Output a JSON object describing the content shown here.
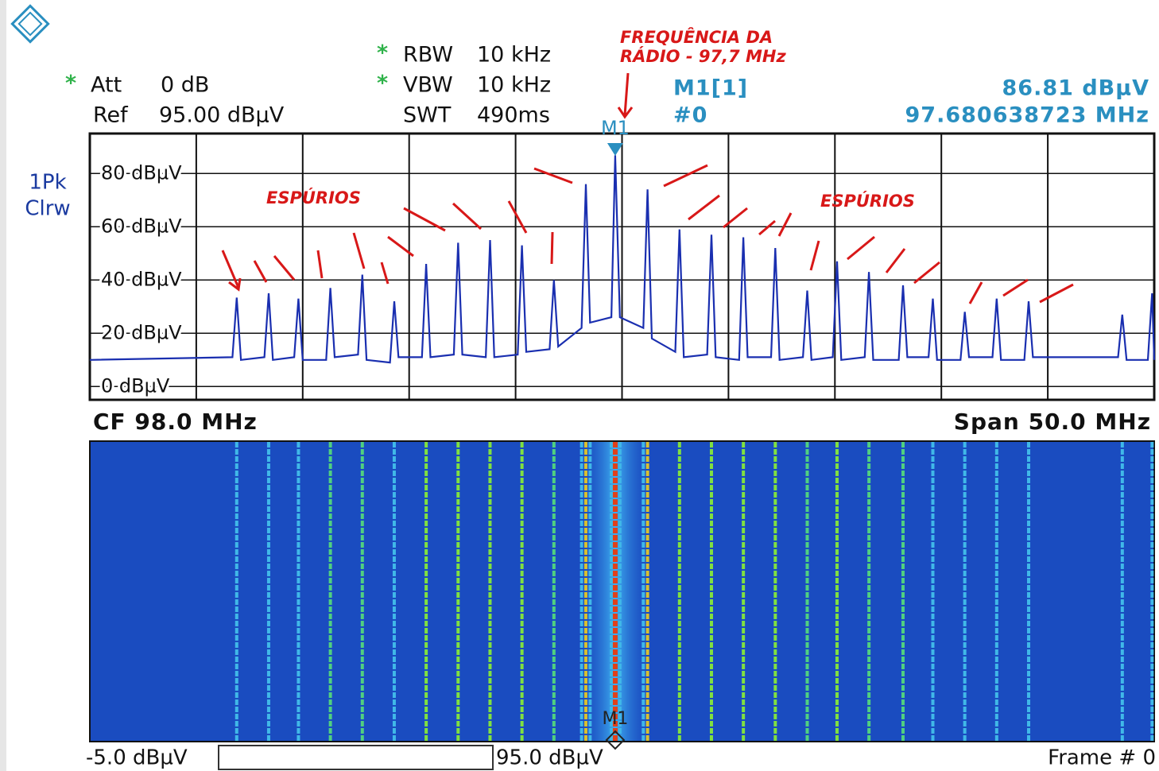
{
  "header": {
    "att_flag": "*",
    "att_label": "Att",
    "att_value": "0 dB",
    "ref_label": "Ref",
    "ref_value": "95.00 dBµV",
    "rbw_flag": "*",
    "rbw_label": "RBW",
    "rbw_value": "10 kHz",
    "vbw_flag": "*",
    "vbw_label": "VBW",
    "vbw_value": "10 kHz",
    "swt_label": "SWT",
    "swt_value": "490ms",
    "marker_name": "M1[1]",
    "marker_index": "#0",
    "marker_level": "86.81 dBµV",
    "marker_freq": "97.680638723 MHz",
    "trace_mode_1": "1Pk",
    "trace_mode_2": "Clrw"
  },
  "annotations": {
    "radio_1": "FREQUÊNCIA DA",
    "radio_2": "RÁDIO - 97,7 MHz",
    "spurs_left": "ESPÚRIOS",
    "spurs_right": "ESPÚRIOS"
  },
  "footer": {
    "center_freq": "CF 98.0 MHz",
    "span": "Span 50.0 MHz",
    "scale_min": "-5.0 dBµV",
    "scale_max": "95.0 dBµV",
    "frame": "Frame # 0"
  },
  "chart_data": {
    "type": "line",
    "marker_label": "M1",
    "waterfall_marker_label": "M1",
    "xlim": [
      73,
      123
    ],
    "ylim": [
      -5,
      95
    ],
    "yticks": [
      {
        "value": 80,
        "label": "80 dBµV"
      },
      {
        "value": 60,
        "label": "60 dBµV"
      },
      {
        "value": 40,
        "label": "40 dBµV"
      },
      {
        "value": 20,
        "label": "20 dBµV"
      },
      {
        "value": 0,
        "label": "0 dBµV"
      }
    ],
    "grid": true,
    "color": "#1a2fb0",
    "x": [
      73,
      79.7,
      79.9,
      80.1,
      81.2,
      81.4,
      81.6,
      82.6,
      82.8,
      83.0,
      84.1,
      84.3,
      84.5,
      85.6,
      85.8,
      86.0,
      87.1,
      87.3,
      87.5,
      88.6,
      88.8,
      89.0,
      90.1,
      90.3,
      90.5,
      91.6,
      91.8,
      92.0,
      93.1,
      93.3,
      93.5,
      94.6,
      94.8,
      95.0,
      96.1,
      96.3,
      96.5,
      97.5,
      97.68,
      97.9,
      99.0,
      99.2,
      99.4,
      100.5,
      100.7,
      100.9,
      102.0,
      102.2,
      102.4,
      103.5,
      103.7,
      103.9,
      105.0,
      105.2,
      105.4,
      106.5,
      106.7,
      106.9,
      107.9,
      108.1,
      108.3,
      109.4,
      109.6,
      109.8,
      111.0,
      111.2,
      111.4,
      112.4,
      112.6,
      112.8,
      113.9,
      114.1,
      114.3,
      115.4,
      115.6,
      115.8,
      116.9,
      117.1,
      117.3,
      121.3,
      121.5,
      121.7,
      122.7,
      122.9,
      123
    ],
    "values": [
      10,
      11,
      33.4,
      10,
      11,
      35,
      10,
      11,
      33,
      10,
      10,
      37,
      11,
      12,
      42,
      10,
      9,
      32,
      11,
      11,
      46,
      11,
      12,
      54,
      12,
      11,
      55,
      11,
      12,
      53,
      13,
      14,
      40,
      15,
      22,
      76,
      24,
      26,
      86.81,
      26,
      22,
      74,
      18,
      13,
      59,
      11,
      12,
      57,
      11,
      10,
      56,
      11,
      11,
      52,
      10,
      11,
      36,
      10,
      11,
      47,
      10,
      11,
      43,
      10,
      10,
      38,
      11,
      11,
      33,
      10,
      10,
      28,
      11,
      11,
      33,
      10,
      10,
      32,
      11,
      11,
      27,
      10,
      10,
      35,
      10
    ]
  }
}
